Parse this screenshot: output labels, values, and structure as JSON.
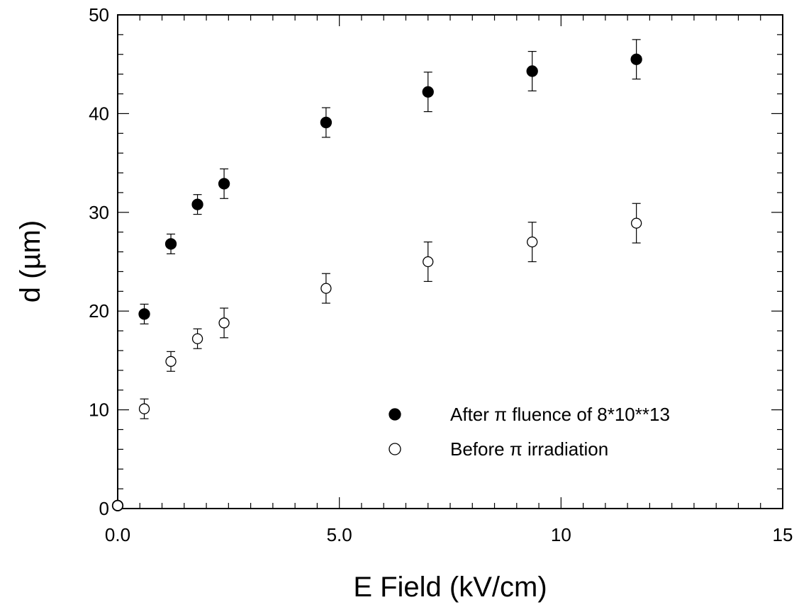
{
  "chart_data": {
    "type": "scatter",
    "xlabel": "E Field (kV/cm)",
    "ylabel": "d (µm)",
    "xlim": [
      0,
      15
    ],
    "ylim": [
      0,
      50
    ],
    "x_ticks": [
      {
        "value": 0,
        "label": "0.0"
      },
      {
        "value": 5,
        "label": "5.0"
      },
      {
        "value": 10,
        "label": "10"
      },
      {
        "value": 15,
        "label": "15"
      }
    ],
    "y_ticks": [
      {
        "value": 0,
        "label": "0"
      },
      {
        "value": 10,
        "label": "10"
      },
      {
        "value": 20,
        "label": "20"
      },
      {
        "value": 30,
        "label": "30"
      },
      {
        "value": 40,
        "label": "40"
      },
      {
        "value": 50,
        "label": "50"
      }
    ],
    "x_minor_step": 0.5,
    "y_minor_step": 2,
    "grid": false,
    "legend_position": "bottom-right",
    "series": [
      {
        "name": "After π fluence of 8*10**13",
        "marker": "filled-circle",
        "color": "#000000",
        "points": [
          {
            "x": 0.0,
            "y": 0.3,
            "err": 0
          },
          {
            "x": 0.6,
            "y": 19.7,
            "err": 1.0
          },
          {
            "x": 1.2,
            "y": 26.8,
            "err": 1.0
          },
          {
            "x": 1.8,
            "y": 30.8,
            "err": 1.0
          },
          {
            "x": 2.4,
            "y": 32.9,
            "err": 1.5
          },
          {
            "x": 4.7,
            "y": 39.1,
            "err": 1.5
          },
          {
            "x": 7.0,
            "y": 42.2,
            "err": 2.0
          },
          {
            "x": 9.35,
            "y": 44.3,
            "err": 2.0
          },
          {
            "x": 11.7,
            "y": 45.5,
            "err": 2.0
          }
        ]
      },
      {
        "name": "Before π irradiation",
        "marker": "open-circle",
        "color": "#000000",
        "points": [
          {
            "x": 0.0,
            "y": 0.3,
            "err": 0
          },
          {
            "x": 0.6,
            "y": 10.1,
            "err": 1.0
          },
          {
            "x": 1.2,
            "y": 14.9,
            "err": 1.0
          },
          {
            "x": 1.8,
            "y": 17.2,
            "err": 1.0
          },
          {
            "x": 2.4,
            "y": 18.8,
            "err": 1.5
          },
          {
            "x": 4.7,
            "y": 22.3,
            "err": 1.5
          },
          {
            "x": 7.0,
            "y": 25.0,
            "err": 2.0
          },
          {
            "x": 9.35,
            "y": 27.0,
            "err": 2.0
          },
          {
            "x": 11.7,
            "y": 28.9,
            "err": 2.0
          }
        ]
      }
    ]
  }
}
